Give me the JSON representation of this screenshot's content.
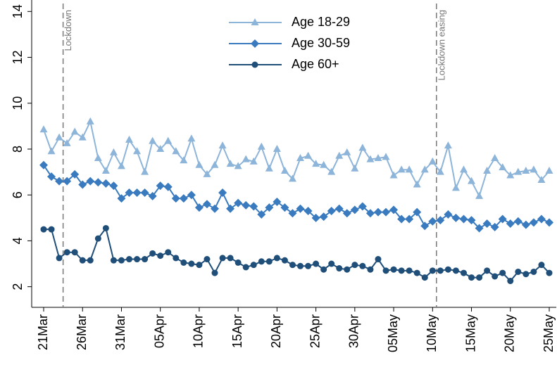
{
  "chart_data": {
    "type": "line",
    "categories": [
      "21Mar",
      null,
      null,
      null,
      null,
      "26Mar",
      null,
      null,
      null,
      null,
      "31Mar",
      null,
      null,
      null,
      null,
      "05Apr",
      null,
      null,
      null,
      null,
      "10Apr",
      null,
      null,
      null,
      null,
      "15Apr",
      null,
      null,
      null,
      null,
      "20Apr",
      null,
      null,
      null,
      null,
      "25Apr",
      null,
      null,
      null,
      null,
      "30Apr",
      null,
      null,
      null,
      null,
      "05May",
      null,
      null,
      null,
      null,
      "10May",
      null,
      null,
      null,
      null,
      "15May",
      null,
      null,
      null,
      null,
      "20May",
      null,
      null,
      null,
      null,
      "25May"
    ],
    "series": [
      {
        "name": "Age 18-29",
        "color": "#8db4d9",
        "marker": "triangle",
        "values": [
          8.85,
          7.9,
          8.5,
          8.25,
          8.75,
          8.5,
          9.2,
          7.6,
          7.05,
          7.85,
          7.25,
          8.4,
          7.9,
          7.0,
          8.35,
          8.0,
          8.35,
          7.9,
          7.5,
          8.45,
          7.3,
          6.9,
          7.3,
          8.15,
          7.35,
          7.25,
          7.55,
          7.45,
          8.1,
          7.15,
          8.0,
          7.05,
          6.7,
          7.6,
          7.7,
          7.35,
          7.3,
          7.0,
          7.7,
          7.85,
          7.15,
          8.05,
          7.55,
          7.6,
          7.65,
          6.85,
          7.1,
          7.1,
          6.45,
          7.1,
          7.45,
          7.0,
          8.15,
          6.3,
          7.1,
          6.6,
          5.95,
          7.05,
          7.6,
          7.2,
          6.85,
          7.0,
          7.05,
          7.1,
          6.65,
          7.05
        ]
      },
      {
        "name": "Age 30-59",
        "color": "#3a7bbf",
        "marker": "diamond",
        "values": [
          7.3,
          6.8,
          6.6,
          6.6,
          6.9,
          6.45,
          6.6,
          6.55,
          6.5,
          6.4,
          5.85,
          6.1,
          6.1,
          6.1,
          5.95,
          6.4,
          6.35,
          5.85,
          5.85,
          6.0,
          5.45,
          5.6,
          5.4,
          6.1,
          5.4,
          5.65,
          5.55,
          5.5,
          5.15,
          5.45,
          5.7,
          5.45,
          5.2,
          5.4,
          5.3,
          5.0,
          5.05,
          5.3,
          5.4,
          5.2,
          5.35,
          5.5,
          5.2,
          5.25,
          5.25,
          5.35,
          4.95,
          4.95,
          5.25,
          4.65,
          4.85,
          4.9,
          5.15,
          5.0,
          4.95,
          4.9,
          4.55,
          4.75,
          4.6,
          4.95,
          4.75,
          4.85,
          4.7,
          4.8,
          4.95,
          4.8
        ]
      },
      {
        "name": "Age 60+",
        "color": "#1f4e79",
        "marker": "circle",
        "values": [
          4.5,
          4.5,
          3.25,
          3.5,
          3.5,
          3.15,
          3.15,
          4.1,
          4.55,
          3.15,
          3.15,
          3.2,
          3.2,
          3.2,
          3.45,
          3.35,
          3.5,
          3.25,
          3.05,
          3.0,
          2.95,
          3.2,
          2.6,
          3.25,
          3.25,
          3.05,
          2.85,
          2.95,
          3.1,
          3.1,
          3.25,
          3.15,
          2.95,
          2.9,
          2.9,
          3.0,
          2.75,
          3.0,
          2.8,
          2.75,
          2.95,
          2.9,
          2.75,
          3.2,
          2.7,
          2.75,
          2.7,
          2.7,
          2.6,
          2.4,
          2.7,
          2.7,
          2.75,
          2.7,
          2.6,
          2.4,
          2.4,
          2.7,
          2.45,
          2.6,
          2.25,
          2.65,
          2.55,
          2.65,
          2.95,
          2.6
        ]
      }
    ],
    "ylim": [
      1.1,
      14.5
    ],
    "yticks": [
      2,
      4,
      6,
      8,
      10,
      12,
      14
    ],
    "annotations": [
      {
        "text": "Lockdown",
        "x": 2.5
      },
      {
        "text": "Lockdown easing",
        "x": 50.5
      }
    ]
  }
}
